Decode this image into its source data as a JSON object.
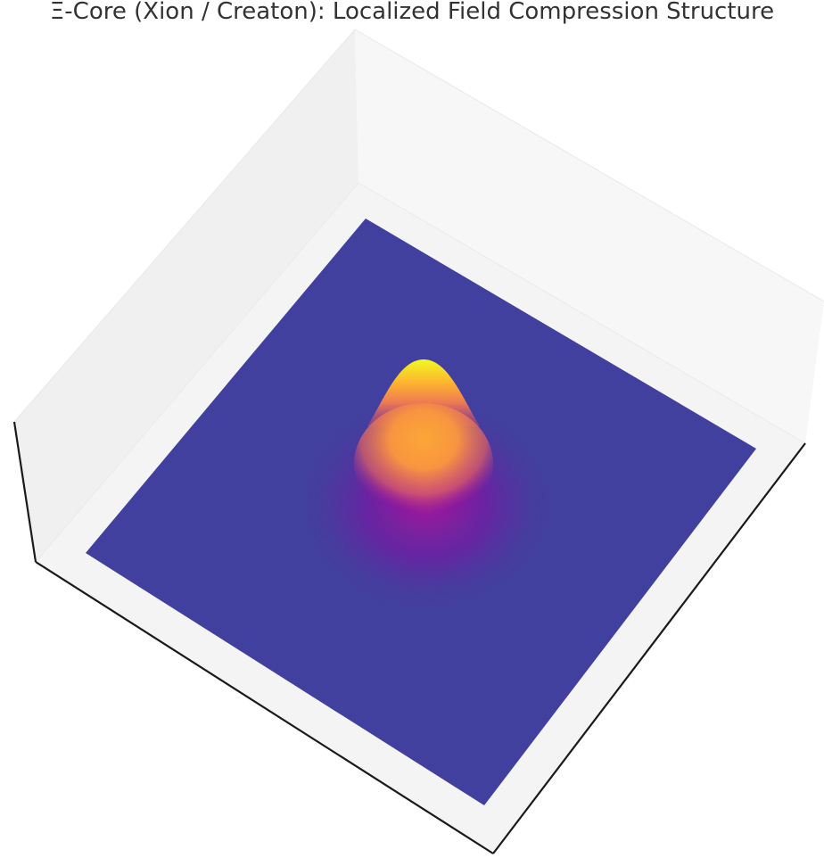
{
  "chart_data": {
    "type": "surface",
    "title": "Ξ-Core (Xion / Creaton): Localized Field Compression Structure",
    "xlabel": "",
    "ylabel": "",
    "zlabel": "",
    "surface": {
      "function": "gaussian",
      "peak_x": 0,
      "peak_y": 0,
      "amplitude": 1,
      "baseline": 0,
      "x_range": [
        -5,
        5
      ],
      "y_range": [
        -5,
        5
      ]
    },
    "colormap": "plasma",
    "grid": false,
    "axis_ticks": false,
    "colors": {
      "pane_back": "#f0f0f0",
      "pane_side": "#f7f7f7",
      "pane_floor": "#f4f4f4",
      "axis_line": "#1a1a1a",
      "base_surface": "#41409e",
      "title_text": "#333333"
    }
  }
}
